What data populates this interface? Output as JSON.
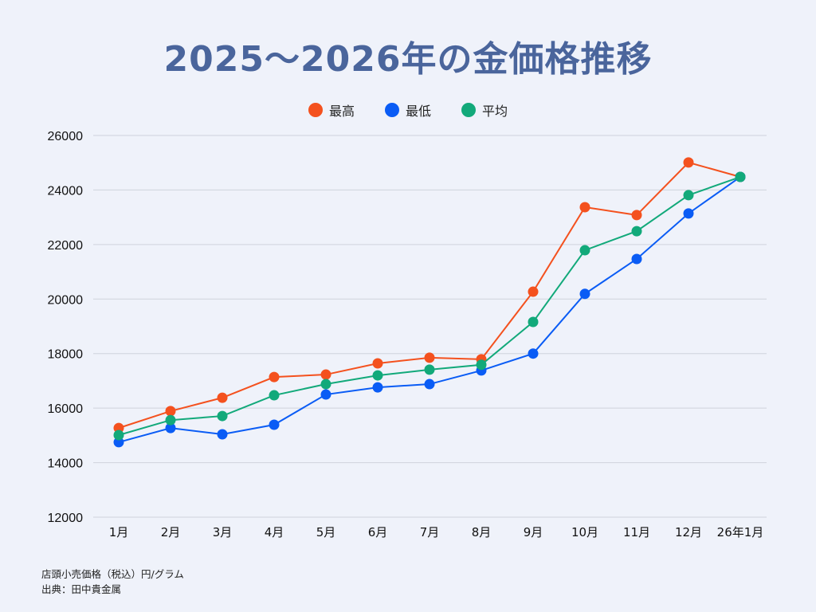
{
  "title": "2025～2026年の金価格推移",
  "footnotes": {
    "unit": "店頭小売価格（税込）円/グラム",
    "source": "出典：田中貴金属"
  },
  "chart_data": {
    "type": "line",
    "title": "2025～2026年の金価格推移",
    "xlabel": "",
    "ylabel": "",
    "ylim": [
      12000,
      26000
    ],
    "yticks": [
      12000,
      14000,
      16000,
      18000,
      20000,
      22000,
      24000,
      26000
    ],
    "grid": true,
    "legend_position": "top-center",
    "categories": [
      "1月",
      "2月",
      "3月",
      "4月",
      "5月",
      "6月",
      "7月",
      "8月",
      "9月",
      "10月",
      "11月",
      "12月",
      "26年1月"
    ],
    "series": [
      {
        "name": "最高",
        "color": "#f4511e",
        "values": [
          15270,
          15890,
          16380,
          17140,
          17230,
          17640,
          17850,
          17790,
          20270,
          23370,
          23080,
          25010,
          24480
        ]
      },
      {
        "name": "最低",
        "color": "#0a5cf5",
        "values": [
          14750,
          15270,
          15040,
          15390,
          16500,
          16760,
          16880,
          17380,
          18000,
          20190,
          21470,
          23140,
          24480
        ]
      },
      {
        "name": "平均",
        "color": "#12a97a",
        "values": [
          15010,
          15560,
          15710,
          16470,
          16880,
          17200,
          17410,
          17590,
          19160,
          21790,
          22490,
          23810,
          24480
        ]
      }
    ]
  }
}
